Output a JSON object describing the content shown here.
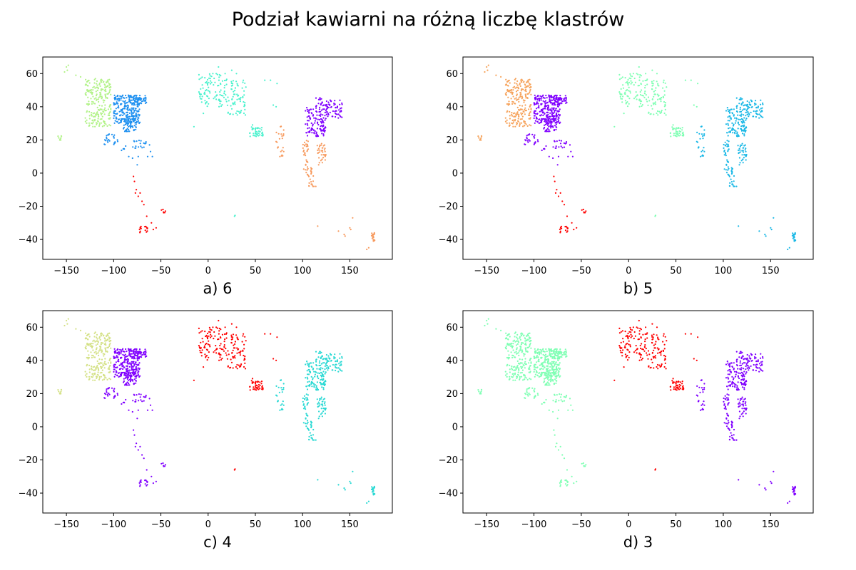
{
  "figure": {
    "title": "Podział kawiarni na różną liczbę klastrów"
  },
  "palette": {
    "orange": "#f6a35c",
    "salmon": "#f79a5e",
    "red": "#ff0000",
    "purple": "#8000ff",
    "blue": "#1e90f0",
    "cyan": "#1ab8e6",
    "turquoise": "#2ad9d4",
    "aquamarine": "#4cf2ce",
    "mint": "#80ffb4",
    "lightgreen": "#b2f288",
    "olive": "#d4e186"
  },
  "chart_data": [
    {
      "type": "scatter",
      "label": "a) 6",
      "xlim": [
        -175,
        195
      ],
      "ylim": [
        -52,
        70
      ],
      "xticks": [
        -150,
        -100,
        -50,
        0,
        50,
        100,
        150
      ],
      "yticks": [
        -40,
        -20,
        0,
        20,
        40,
        60
      ],
      "clusters": [
        {
          "color": "lightgreen",
          "regions": [
            "na_west",
            "alaska",
            "hawaii"
          ]
        },
        {
          "color": "blue",
          "regions": [
            "na_east",
            "mexico_carib"
          ]
        },
        {
          "color": "red",
          "regions": [
            "south_america"
          ]
        },
        {
          "color": "aquamarine",
          "regions": [
            "europe",
            "middle_east",
            "south_africa"
          ]
        },
        {
          "color": "purple",
          "regions": [
            "east_asia"
          ]
        },
        {
          "color": "salmon",
          "regions": [
            "se_asia",
            "india",
            "oceania"
          ]
        }
      ]
    },
    {
      "type": "scatter",
      "label": "b) 5",
      "xlim": [
        -175,
        195
      ],
      "ylim": [
        -52,
        70
      ],
      "xticks": [
        -150,
        -100,
        -50,
        0,
        50,
        100,
        150
      ],
      "yticks": [
        -40,
        -20,
        0,
        20,
        40,
        60
      ],
      "clusters": [
        {
          "color": "orange",
          "regions": [
            "na_west",
            "alaska",
            "hawaii"
          ]
        },
        {
          "color": "purple",
          "regions": [
            "na_east",
            "mexico_carib"
          ]
        },
        {
          "color": "red",
          "regions": [
            "south_america"
          ]
        },
        {
          "color": "mint",
          "regions": [
            "europe",
            "middle_east",
            "south_africa"
          ]
        },
        {
          "color": "cyan",
          "regions": [
            "east_asia",
            "se_asia",
            "india",
            "oceania"
          ]
        }
      ]
    },
    {
      "type": "scatter",
      "label": "c) 4",
      "xlim": [
        -175,
        195
      ],
      "ylim": [
        -52,
        70
      ],
      "xticks": [
        -150,
        -100,
        -50,
        0,
        50,
        100,
        150
      ],
      "yticks": [
        -40,
        -20,
        0,
        20,
        40,
        60
      ],
      "clusters": [
        {
          "color": "olive",
          "regions": [
            "na_west",
            "alaska",
            "hawaii"
          ]
        },
        {
          "color": "purple",
          "regions": [
            "na_east",
            "mexico_carib",
            "south_america"
          ]
        },
        {
          "color": "red",
          "regions": [
            "europe",
            "middle_east",
            "south_africa"
          ]
        },
        {
          "color": "turquoise",
          "regions": [
            "east_asia",
            "se_asia",
            "india",
            "oceania"
          ]
        }
      ]
    },
    {
      "type": "scatter",
      "label": "d) 3",
      "xlim": [
        -175,
        195
      ],
      "ylim": [
        -52,
        70
      ],
      "xticks": [
        -150,
        -100,
        -50,
        0,
        50,
        100,
        150
      ],
      "yticks": [
        -40,
        -20,
        0,
        20,
        40,
        60
      ],
      "clusters": [
        {
          "color": "mint",
          "regions": [
            "na_west",
            "alaska",
            "hawaii",
            "na_east",
            "mexico_carib",
            "south_america"
          ]
        },
        {
          "color": "red",
          "regions": [
            "europe",
            "middle_east",
            "south_africa"
          ]
        },
        {
          "color": "purple",
          "regions": [
            "east_asia",
            "se_asia",
            "india",
            "oceania"
          ]
        }
      ]
    }
  ],
  "regions": {
    "na_west": {
      "count": 230,
      "zones": [
        [
          -130,
          -103,
          28,
          57
        ]
      ],
      "points": []
    },
    "na_east": {
      "count": 360,
      "zones": [
        [
          -100,
          -72,
          30,
          47
        ],
        [
          -90,
          -76,
          25,
          33
        ],
        [
          -80,
          -65,
          42,
          47
        ]
      ],
      "points": []
    },
    "alaska": {
      "count": 6,
      "zones": [],
      "points": [
        [
          -150,
          64
        ],
        [
          -148,
          65
        ],
        [
          -152,
          61
        ],
        [
          -149,
          62
        ],
        [
          -140,
          59
        ],
        [
          -135,
          58
        ]
      ]
    },
    "hawaii": {
      "count": 8,
      "zones": [
        [
          -159,
          -155,
          19.5,
          22.5
        ]
      ],
      "points": []
    },
    "mexico_carib": {
      "count": 45,
      "zones": [
        [
          -110,
          -95,
          17,
          24
        ],
        [
          -92,
          -86,
          13,
          17
        ],
        [
          -80,
          -64,
          15,
          20
        ]
      ],
      "points": [
        [
          -66,
          18
        ],
        [
          -62,
          17
        ],
        [
          -61,
          13
        ],
        [
          -59,
          10
        ],
        [
          -64,
          10
        ],
        [
          -75,
          5
        ],
        [
          -74,
          10
        ],
        [
          -80,
          9
        ],
        [
          -84,
          10
        ],
        [
          -96,
          20
        ],
        [
          -100,
          22
        ]
      ]
    },
    "south_america": {
      "count": 22,
      "zones": [
        [
          -50,
          -45,
          -24,
          -21
        ],
        [
          -73,
          -64,
          -36,
          -32
        ]
      ],
      "points": [
        [
          -77,
          -12
        ],
        [
          -76,
          -10
        ],
        [
          -79,
          -2
        ],
        [
          -78,
          -5
        ],
        [
          -74,
          -14
        ],
        [
          -70,
          -17
        ],
        [
          -68,
          -19
        ],
        [
          -72,
          -12
        ],
        [
          -65,
          -26
        ],
        [
          -58,
          -34
        ],
        [
          -60,
          -30
        ],
        [
          -55,
          -33
        ]
      ]
    },
    "europe": {
      "count": 170,
      "zones": [
        [
          -10,
          20,
          40,
          60
        ],
        [
          20,
          40,
          35,
          56
        ]
      ],
      "points": [
        [
          -15,
          28
        ],
        [
          -5,
          36
        ],
        [
          5,
          60
        ],
        [
          11,
          64
        ],
        [
          18,
          60
        ],
        [
          30,
          60
        ],
        [
          25,
          62
        ]
      ]
    },
    "middle_east": {
      "count": 40,
      "zones": [
        [
          44,
          58,
          22,
          28
        ]
      ],
      "points": [
        [
          51,
          25
        ],
        [
          55,
          25
        ],
        [
          57,
          24
        ],
        [
          58,
          23
        ],
        [
          47,
          29
        ],
        [
          50,
          26
        ],
        [
          66,
          56
        ],
        [
          60,
          56
        ],
        [
          73,
          54
        ],
        [
          72,
          40
        ],
        [
          69,
          41
        ]
      ]
    },
    "south_africa": {
      "count": 2,
      "zones": [],
      "points": [
        [
          28,
          -26
        ],
        [
          28.5,
          -25.5
        ]
      ]
    },
    "india": {
      "count": 20,
      "zones": [
        [
          72,
          80,
          10,
          29
        ]
      ],
      "points": [
        [
          77,
          28
        ],
        [
          72,
          19
        ],
        [
          77,
          13
        ],
        [
          80,
          13
        ],
        [
          76,
          10
        ]
      ]
    },
    "east_asia": {
      "count": 200,
      "zones": [
        [
          103,
          125,
          22,
          40
        ],
        [
          125,
          142,
          33,
          44
        ],
        [
          114,
          125,
          40,
          46
        ]
      ],
      "points": []
    },
    "se_asia": {
      "count": 90,
      "zones": [
        [
          100,
          106,
          0,
          20
        ],
        [
          105,
          112,
          -8,
          5
        ],
        [
          115,
          124,
          5,
          18
        ],
        [
          120,
          126,
          10,
          16
        ]
      ],
      "points": [
        [
          101,
          13
        ],
        [
          103,
          2
        ],
        [
          107,
          -6
        ],
        [
          111,
          -8
        ],
        [
          114,
          -8
        ],
        [
          117,
          5
        ]
      ]
    },
    "oceania": {
      "count": 18,
      "zones": [
        [
          173,
          177,
          -41,
          -36
        ]
      ],
      "points": [
        [
          151,
          -34
        ],
        [
          150,
          -33
        ],
        [
          153,
          -27
        ],
        [
          145,
          -38
        ],
        [
          144,
          -37
        ],
        [
          138,
          -35
        ],
        [
          116,
          -32
        ],
        [
          168,
          -46
        ],
        [
          170,
          -45
        ],
        [
          175,
          -41
        ],
        [
          174,
          -37
        ]
      ]
    }
  }
}
